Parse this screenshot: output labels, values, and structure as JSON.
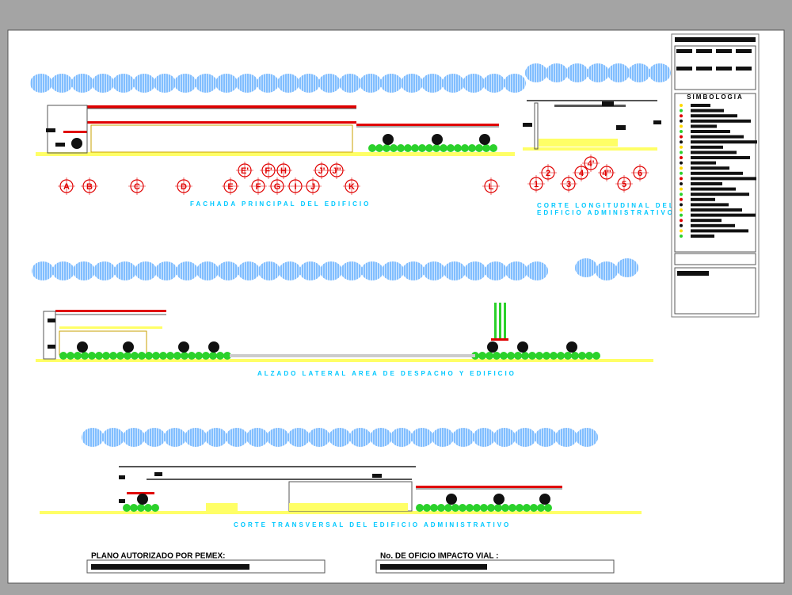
{
  "drawings": [
    {
      "title": "FACHADA PRINCIPAL DEL EDIFICIO"
    },
    {
      "title": "CORTE LONGITUDINAL DEL",
      "subtitle": "EDIFICIO ADMINISTRATIVO"
    },
    {
      "title": "ALZADO LATERAL AREA DE DESPACHO Y EDIFICIO"
    },
    {
      "title": "CORTE TRANSVERSAL DEL EDIFICIO ADMINISTRATIVO"
    }
  ],
  "axes_front": [
    "A",
    "B",
    "C",
    "D",
    "E",
    "F",
    "G",
    "I",
    "J",
    "K",
    "L"
  ],
  "axes_front_upper": [
    "E'",
    "F'",
    "H",
    "J'",
    "J''"
  ],
  "axes_longitudinal": [
    "1",
    "2",
    "3",
    "4",
    "4'",
    "4''",
    "5",
    "6"
  ],
  "legend": {
    "title": "SIMBOLOGIA"
  },
  "footer": {
    "authorized_label": "PLANO AUTORIZADO POR PEMEX:",
    "oficio_label": "No. DE OFICIO IMPACTO VIAL :"
  }
}
